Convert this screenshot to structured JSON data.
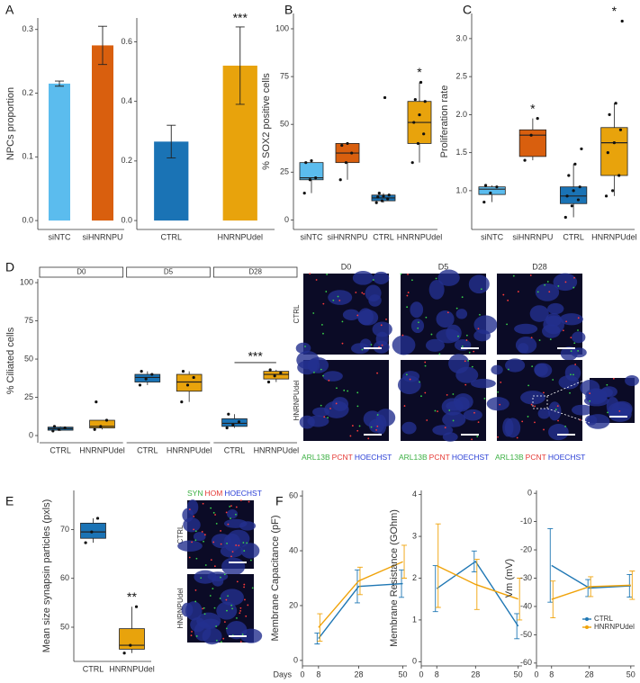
{
  "panel_labels": [
    "A",
    "B",
    "C",
    "D",
    "E",
    "F"
  ],
  "images": {
    "D": {
      "columns": [
        "D0",
        "D5",
        "D28"
      ],
      "rows": [
        "CTRL",
        "HNRNPUdel"
      ],
      "stain": [
        "ARL13B",
        "PCNT",
        "HOECHST"
      ],
      "stain_colors": [
        "#3cb043",
        "#e53935",
        "#2a3fd6"
      ]
    },
    "E": {
      "rows": [
        "CTRL",
        "HNRNPUdel"
      ],
      "stain": [
        "SYN",
        "HOM",
        "HOECHST"
      ],
      "stain_colors": [
        "#3cb043",
        "#e53935",
        "#2a3fd6"
      ]
    }
  },
  "chart_data": [
    {
      "type": "bar",
      "ylabel": "NPCs proportion",
      "categories": [
        "siNTC",
        "siHNRNPU"
      ],
      "values": [
        0.215,
        0.275
      ],
      "errors": [
        0.004,
        0.03
      ],
      "colors": [
        "#5bbcee",
        "#d95f0e"
      ],
      "ylim": [
        -0.014,
        0.318
      ],
      "yticks": [
        {
          "value": 0,
          "label": "0.0"
        },
        0.1,
        0.2,
        0.3
      ]
    },
    {
      "type": "bar",
      "categories": [
        "CTRL",
        "HNRNPUdel"
      ],
      "values": [
        0.265,
        0.52
      ],
      "errors": [
        0.055,
        0.13
      ],
      "colors": [
        "#1a73b5",
        "#e8a30c"
      ],
      "ylim": [
        -0.03,
        0.68
      ],
      "yticks": [
        {
          "value": 0,
          "label": "0.0"
        },
        0.2,
        0.4,
        0.6
      ],
      "annotations": [
        {
          "text": "***",
          "category": "HNRNPUdel"
        }
      ]
    },
    {
      "type": "box",
      "ylabel": "% SOX2 positive cells",
      "categories": [
        "siNTC",
        "siHNRNPU",
        "CTRL",
        "HNRNPUdel"
      ],
      "colors": [
        "#5bbcee",
        "#d95f0e",
        "#1a73b5",
        "#e8a30c"
      ],
      "boxes": [
        {
          "whislo": 14,
          "q1": 21,
          "med": 22,
          "q3": 30,
          "whishi": 31,
          "points": [
            14,
            21,
            22,
            30,
            31
          ]
        },
        {
          "whislo": 21,
          "q1": 30,
          "med": 35,
          "q3": 40,
          "whishi": 40,
          "points": [
            21,
            30,
            35,
            39,
            40
          ]
        },
        {
          "whislo": 9,
          "q1": 10,
          "med": 11.5,
          "q3": 13,
          "whishi": 14,
          "points": [
            9,
            10,
            11,
            12,
            12.5,
            13,
            14,
            64
          ]
        },
        {
          "whislo": 30,
          "q1": 40,
          "med": 51,
          "q3": 62,
          "whishi": 72,
          "points": [
            30,
            40,
            45,
            51,
            55,
            62,
            63,
            72
          ]
        }
      ],
      "ylim": [
        -5,
        108
      ],
      "yticks": [
        0,
        25,
        50,
        75,
        100
      ],
      "annotations": [
        {
          "text": "*",
          "category": "HNRNPUdel"
        }
      ]
    },
    {
      "type": "box",
      "ylabel": "Proliferation rate",
      "categories": [
        "siNTC",
        "siHNRNPU",
        "CTRL",
        "HNRNPUdel"
      ],
      "colors": [
        "#5bbcee",
        "#d95f0e",
        "#1a73b5",
        "#e8a30c"
      ],
      "boxes": [
        {
          "whislo": 0.85,
          "q1": 0.95,
          "med": 1.02,
          "q3": 1.05,
          "whishi": 1.07,
          "points": [
            0.85,
            0.97,
            1.05,
            1.07
          ]
        },
        {
          "whislo": 1.4,
          "q1": 1.45,
          "med": 1.73,
          "q3": 1.8,
          "whishi": 1.95,
          "points": [
            1.4,
            1.73,
            1.95
          ]
        },
        {
          "whislo": 0.65,
          "q1": 0.83,
          "med": 0.93,
          "q3": 1.05,
          "whishi": 1.35,
          "points": [
            0.65,
            0.8,
            0.88,
            0.93,
            1.0,
            1.05,
            1.2,
            1.35,
            1.55
          ]
        },
        {
          "whislo": 0.93,
          "q1": 1.2,
          "med": 1.63,
          "q3": 1.83,
          "whishi": 2.15,
          "points": [
            0.93,
            1.0,
            1.2,
            1.5,
            1.63,
            1.8,
            2.0,
            2.15,
            3.23
          ]
        }
      ],
      "ylim": [
        0.49,
        3.33
      ],
      "yticks": [
        {
          "value": 1,
          "label": "1.0"
        },
        1.5,
        {
          "value": 2,
          "label": "2.0"
        },
        2.5,
        {
          "value": 3,
          "label": "3.0"
        }
      ],
      "annotations": [
        {
          "text": "*",
          "category": "siHNRNPU"
        },
        {
          "text": "*",
          "category": "HNRNPUdel"
        }
      ]
    },
    {
      "type": "facet_box",
      "ylabel": "% Ciliated cells",
      "colors": [
        "#1a73b5",
        "#e8a30c"
      ],
      "facets": [
        {
          "label": "D0",
          "categories": [
            "CTRL",
            "HNRNPUdel"
          ],
          "boxes": [
            {
              "whislo": 3,
              "q1": 3.5,
              "med": 4.5,
              "q3": 5.5,
              "whishi": 6,
              "points": [
                3,
                4,
                5,
                6
              ]
            },
            {
              "whislo": 4,
              "q1": 5,
              "med": 6,
              "q3": 10,
              "whishi": 10,
              "points": [
                4,
                6,
                10,
                22
              ]
            }
          ]
        },
        {
          "label": "D5",
          "categories": [
            "CTRL",
            "HNRNPUdel"
          ],
          "boxes": [
            {
              "whislo": 33,
              "q1": 35,
              "med": 38,
              "q3": 40,
              "whishi": 42,
              "points": [
                33,
                37,
                40,
                42
              ]
            },
            {
              "whislo": 22,
              "q1": 29,
              "med": 35,
              "q3": 40,
              "whishi": 42,
              "points": [
                22,
                33,
                38,
                42
              ]
            }
          ]
        },
        {
          "label": "D28",
          "categories": [
            "CTRL",
            "HNRNPUdel"
          ],
          "boxes": [
            {
              "whislo": 5,
              "q1": 6,
              "med": 8,
              "q3": 11,
              "whishi": 14,
              "points": [
                5,
                7,
                9,
                14
              ]
            },
            {
              "whislo": 35,
              "q1": 37,
              "med": 40,
              "q3": 42,
              "whishi": 43,
              "points": [
                35,
                39,
                41,
                43
              ]
            }
          ]
        }
      ],
      "ylim": [
        -4.7,
        102.4
      ],
      "yticks": [
        0,
        25,
        50,
        75,
        100
      ],
      "annotations": [
        {
          "text": "***",
          "facet": "D28"
        }
      ]
    },
    {
      "type": "box",
      "ylabel": "Mean size synapsin particles (pxls)",
      "categories": [
        "CTRL",
        "HNRNPUdel"
      ],
      "colors": [
        "#1a73b5",
        "#e8a30c"
      ],
      "boxes": [
        {
          "whislo": 67.3,
          "q1": 68.2,
          "med": 69.5,
          "q3": 71.3,
          "whishi": 72.3,
          "points": [
            67.3,
            69.5,
            72.3
          ]
        },
        {
          "whislo": 44.7,
          "q1": 45.5,
          "med": 46.3,
          "q3": 49.7,
          "whishi": 54.2,
          "points": [
            44.7,
            46.3,
            54.2
          ]
        }
      ],
      "ylim": [
        43,
        78
      ],
      "yticks": [
        50,
        60,
        70
      ],
      "annotations": [
        {
          "text": "**",
          "category": "HNRNPUdel"
        }
      ]
    },
    {
      "type": "line",
      "ylabel": "Membrane Capacitance (pF)",
      "xlabel": "Days",
      "x": [
        8,
        28,
        50
      ],
      "xlim": [
        0,
        52
      ],
      "xticks": [
        0,
        8,
        28,
        50
      ],
      "ylim": [
        -2,
        62
      ],
      "yticks": [
        0,
        20,
        40,
        60
      ],
      "series": [
        {
          "name": "CTRL",
          "color": "#1f77b4",
          "values": [
            8,
            27,
            28
          ],
          "errors": [
            2,
            6,
            5
          ]
        },
        {
          "name": "HNRNPUdel",
          "color": "#f0a30a",
          "values": [
            12,
            29,
            36
          ],
          "errors": [
            5,
            5,
            6
          ]
        }
      ]
    },
    {
      "type": "line",
      "ylabel": "Membrane Resistance (GOhm)",
      "x": [
        8,
        28,
        50
      ],
      "xlim": [
        0,
        52
      ],
      "xticks": [
        0,
        8,
        28,
        50
      ],
      "ylim": [
        -0.1,
        4.1
      ],
      "yticks": [
        0,
        1,
        2,
        3,
        4
      ],
      "series": [
        {
          "name": "CTRL",
          "color": "#1f77b4",
          "values": [
            1.75,
            2.4,
            0.85
          ],
          "errors": [
            0.55,
            0.25,
            0.3
          ]
        },
        {
          "name": "HNRNPUdel",
          "color": "#f0a30a",
          "values": [
            2.3,
            1.85,
            1.5
          ],
          "errors": [
            1.0,
            0.6,
            0.5
          ]
        }
      ]
    },
    {
      "type": "line",
      "ylabel": "Vm (mV)",
      "x": [
        8,
        28,
        50
      ],
      "xlim": [
        0,
        52
      ],
      "xticks": [
        0,
        8,
        28,
        50
      ],
      "ylim": [
        -61,
        1
      ],
      "yticks": [
        0,
        -10,
        -20,
        -30,
        -40,
        -50,
        -60
      ],
      "legend": "lower right",
      "series": [
        {
          "name": "CTRL",
          "color": "#1f77b4",
          "values": [
            -25.5,
            -33.5,
            -32.7
          ],
          "errors": [
            13,
            3,
            4
          ]
        },
        {
          "name": "HNRNPUdel",
          "color": "#f0a30a",
          "values": [
            -37.5,
            -33,
            -32.5
          ],
          "errors": [
            6.5,
            3.5,
            5
          ]
        }
      ]
    }
  ]
}
